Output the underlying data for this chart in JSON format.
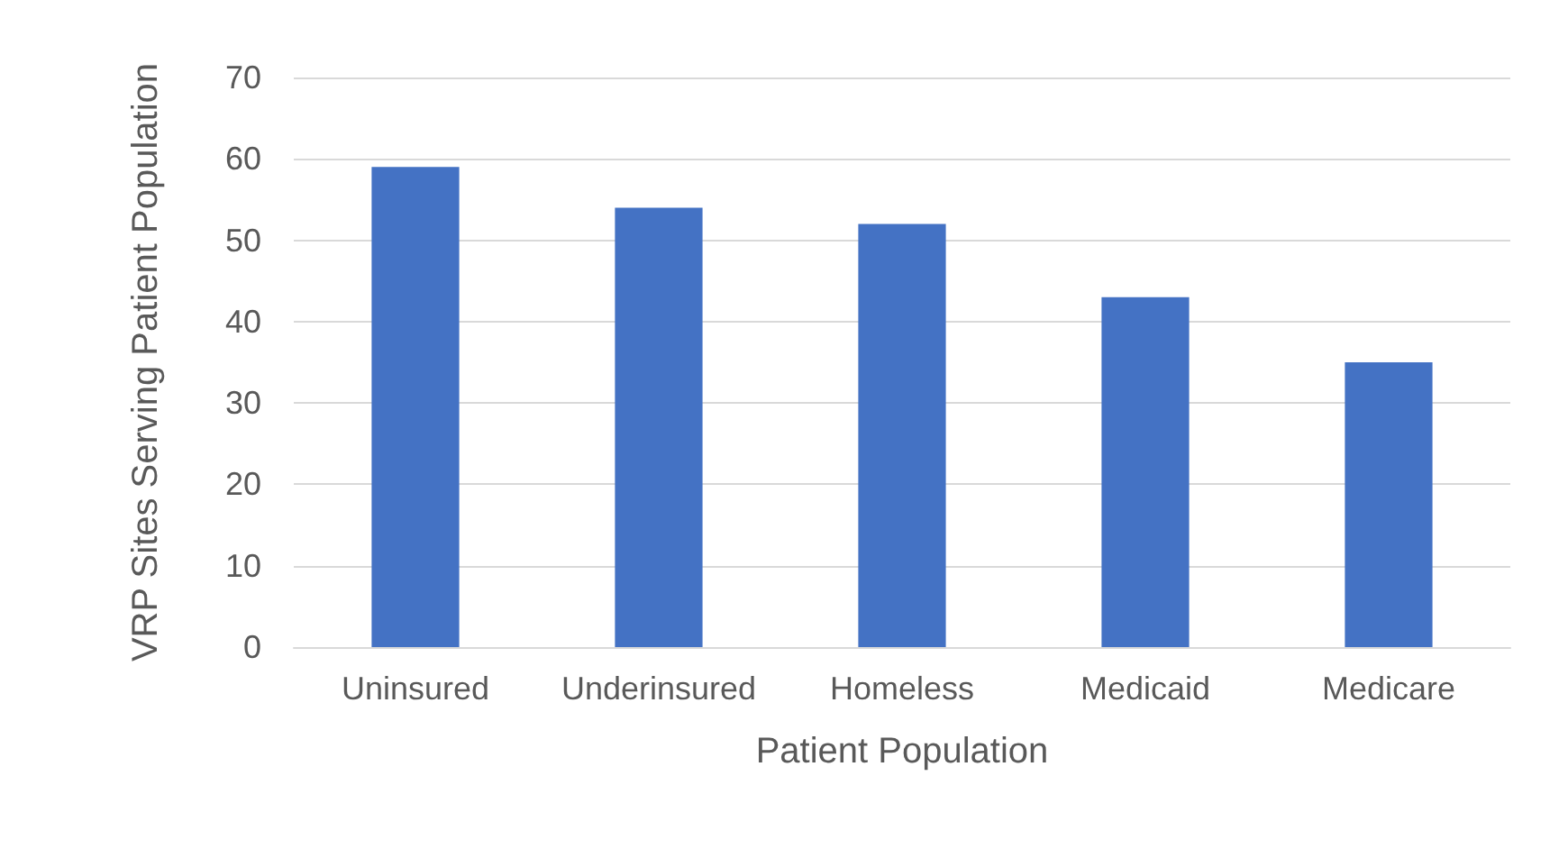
{
  "chart_data": {
    "type": "bar",
    "xlabel": "Patient Population",
    "ylabel": "VRP Sites Serving Patient Population",
    "categories": [
      "Uninsured",
      "Underinsured",
      "Homeless",
      "Medicaid",
      "Medicare"
    ],
    "values": [
      59,
      54,
      52,
      43,
      35
    ],
    "color": "#4472c4",
    "ylim": [
      0,
      70
    ],
    "yticks": [
      0,
      10,
      20,
      30,
      40,
      50,
      60,
      70
    ],
    "grid": "y"
  }
}
